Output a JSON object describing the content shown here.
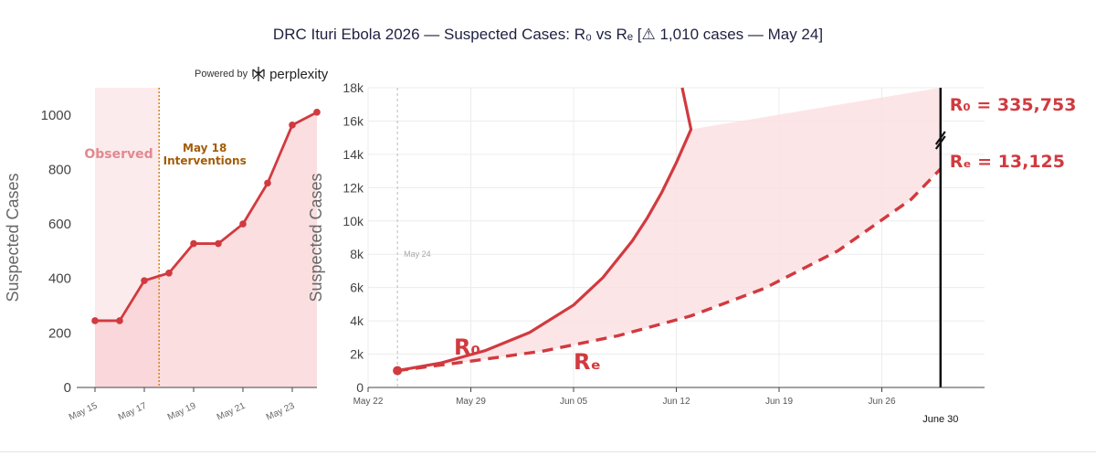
{
  "title": "DRC Ituri Ebola 2026 — Suspected Cases: R₀ vs Rₑ  [⚠ 1,010 cases — May 24]",
  "powered_by": {
    "label": "Powered by",
    "brand": "perplexity",
    "icon": "perplexity-logo-icon"
  },
  "colors": {
    "series": "#d13a3f",
    "fill": "#f7cdd0",
    "observed_band": "#fbe3e5",
    "intervention": "#d98a1e",
    "intervention_text": "#a45c06",
    "grid": "#ececec",
    "axis": "#444444",
    "june30": "#111111"
  },
  "chart_data": [
    {
      "type": "line",
      "ylabel": "Suspected Cases",
      "xlabel": "",
      "x": [
        15,
        16,
        17,
        18,
        19,
        20,
        21,
        22,
        23,
        24
      ],
      "y": [
        245,
        245,
        392,
        420,
        528,
        528,
        600,
        750,
        963,
        1010
      ],
      "xlim": [
        15,
        24
      ],
      "ylim": [
        0,
        1100
      ],
      "y_ticks": [
        0,
        200,
        400,
        600,
        800,
        1000
      ],
      "x_ticks": [
        15,
        17,
        19,
        21,
        23
      ],
      "x_tick_labels": [
        "May 15",
        "May 17",
        "May 19",
        "May 21",
        "May 23"
      ],
      "grid": false,
      "annotations": {
        "observed": "Observed",
        "intervention_line": "May 18",
        "intervention_text": "Interventions"
      },
      "intervention_x": 17.6
    },
    {
      "type": "line",
      "ylabel": "Suspected Cases",
      "xlabel": "",
      "xlim": [
        -2,
        40
      ],
      "ylim": [
        0,
        18000
      ],
      "y_ticks": [
        0,
        2000,
        4000,
        6000,
        8000,
        10000,
        12000,
        14000,
        16000,
        18000
      ],
      "y_tick_labels": [
        "0",
        "2k",
        "4k",
        "6k",
        "8k",
        "10k",
        "12k",
        "14k",
        "16k",
        "18k"
      ],
      "x_ticks": [
        -2,
        5,
        12,
        19,
        26,
        33
      ],
      "x_tick_labels": [
        "May 22",
        "May 29",
        "Jun 05",
        "Jun 12",
        "Jun 19",
        "Jun 26"
      ],
      "grid": true,
      "start_day": 0,
      "start_value": 1010,
      "end_day": 37,
      "vline_label": "May 24",
      "vline_day": 0,
      "series": [
        {
          "name": "R₀",
          "style": "solid",
          "x": [
            0,
            3,
            6,
            9,
            12,
            14,
            16,
            17,
            18,
            19,
            20
          ],
          "y": [
            1010,
            1480,
            2220,
            3300,
            4950,
            6600,
            8800,
            10150,
            11700,
            13500,
            15500
          ],
          "end_value_text": "R₀ = 335,753"
        },
        {
          "name": "Rₑ",
          "style": "dashed",
          "x": [
            0,
            5,
            10,
            15,
            20,
            25,
            30,
            35,
            37
          ],
          "y": [
            1010,
            1580,
            2200,
            3100,
            4300,
            5950,
            8200,
            11300,
            13125
          ],
          "end_value_text": "Rₑ = 13,125"
        }
      ],
      "end_marker_label": "June 30"
    }
  ]
}
